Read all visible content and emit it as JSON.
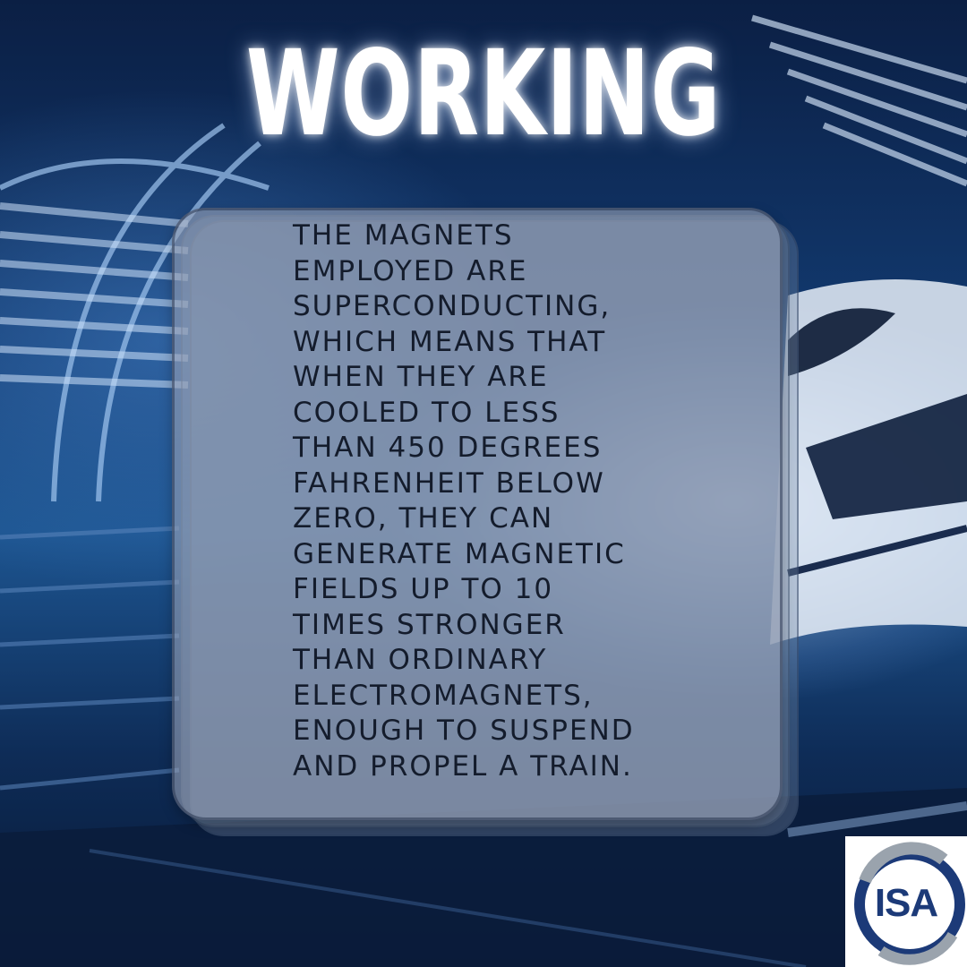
{
  "title": "WORKING",
  "body_text": "THE MAGNETS\nEMPLOYED ARE\nSUPERCONDUCTING,\nWHICH MEANS THAT\nWHEN THEY ARE\nCOOLED TO LESS\nTHAN 450 DEGREES\nFAHRENHEIT BELOW\nZERO, THEY CAN\nGENERATE MAGNETIC\nFIELDS UP TO 10\nTIMES STRONGER\nTHAN ORDINARY\nELECTROMAGNETS,\nENOUGH TO SUSPEND\nAND PROPEL A TRAIN.",
  "logo": {
    "text": "ISA",
    "icon": "isa-logo"
  },
  "colors": {
    "background_blue": "#123a70",
    "title_white": "#ffffff",
    "card_gray": "#969fb4",
    "text_dark": "#141c2c",
    "logo_blue": "#1c3a78",
    "logo_gray": "#9aa3ad"
  }
}
